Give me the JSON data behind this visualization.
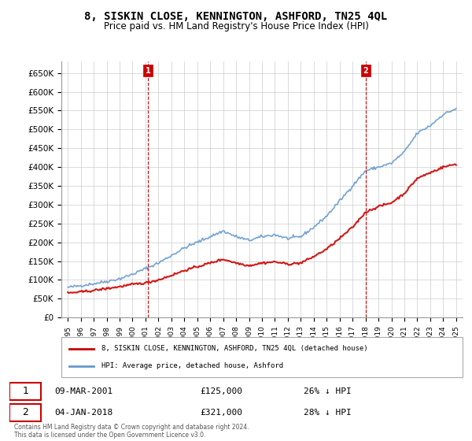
{
  "title": "8, SISKIN CLOSE, KENNINGTON, ASHFORD, TN25 4QL",
  "subtitle": "Price paid vs. HM Land Registry's House Price Index (HPI)",
  "legend_line1": "8, SISKIN CLOSE, KENNINGTON, ASHFORD, TN25 4QL (detached house)",
  "legend_line2": "HPI: Average price, detached house, Ashford",
  "footnote": "Contains HM Land Registry data © Crown copyright and database right 2024.\nThis data is licensed under the Open Government Licence v3.0.",
  "marker1_date": "09-MAR-2001",
  "marker1_price": 125000,
  "marker1_label": "26% ↓ HPI",
  "marker1_year": 2001.18,
  "marker2_date": "04-JAN-2018",
  "marker2_price": 321000,
  "marker2_label": "28% ↓ HPI",
  "marker2_year": 2018.01,
  "hpi_color": "#6699cc",
  "price_color": "#cc0000",
  "marker_color": "#cc0000",
  "background_color": "#ffffff",
  "grid_color": "#cccccc",
  "ylim": [
    0,
    680000
  ],
  "xlim_start": 1994.5,
  "xlim_end": 2025.5
}
